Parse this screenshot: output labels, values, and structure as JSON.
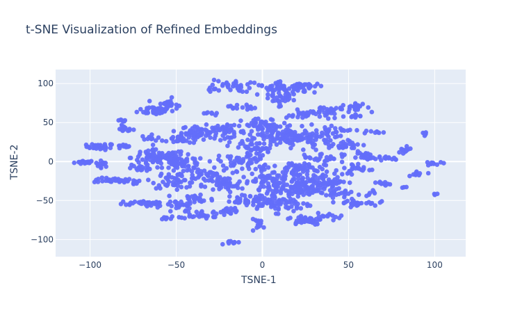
{
  "chart_data": {
    "type": "scatter",
    "title": "t-SNE Visualization of Refined Embeddings",
    "xlabel": "TSNE-1",
    "ylabel": "TSNE-2",
    "xlim": [
      -120,
      118
    ],
    "ylim": [
      -122,
      118
    ],
    "xticks": [
      -100,
      -50,
      0,
      50,
      100
    ],
    "yticks": [
      -100,
      -50,
      0,
      50,
      100
    ],
    "xtick_labels": [
      "−100",
      "−50",
      "0",
      "50",
      "100"
    ],
    "ytick_labels": [
      "−100",
      "−50",
      "0",
      "50",
      "100"
    ],
    "grid": true,
    "marker_color": "#636efa",
    "plot_background": "#e5ecf6",
    "clusters": [
      {
        "cx": -103,
        "cy": -1,
        "sx": 3,
        "sy": 1.2,
        "n": 18
      },
      {
        "cx": -93,
        "cy": -3,
        "sx": 2,
        "sy": 2,
        "n": 12
      },
      {
        "cx": -94,
        "cy": 19,
        "sx": 4,
        "sy": 2,
        "n": 30
      },
      {
        "cx": -81,
        "cy": 19,
        "sx": 2,
        "sy": 1.5,
        "n": 10
      },
      {
        "cx": -80,
        "cy": 42,
        "sx": 2.5,
        "sy": 2,
        "n": 15
      },
      {
        "cx": -82,
        "cy": 52,
        "sx": 1.5,
        "sy": 1,
        "n": 6
      },
      {
        "cx": -86,
        "cy": -24,
        "sx": 6,
        "sy": 1.5,
        "n": 30
      },
      {
        "cx": -76,
        "cy": -27,
        "sx": 3,
        "sy": 1.5,
        "n": 10
      },
      {
        "cx": -62,
        "cy": 66,
        "sx": 5,
        "sy": 3,
        "n": 40
      },
      {
        "cx": -55,
        "cy": 73,
        "sx": 3,
        "sy": 4,
        "n": 25
      },
      {
        "cx": -64,
        "cy": 30,
        "sx": 3,
        "sy": 2,
        "n": 12
      },
      {
        "cx": -48,
        "cy": 29,
        "sx": 5,
        "sy": 3,
        "n": 30
      },
      {
        "cx": -37,
        "cy": 38,
        "sx": 5,
        "sy": 4,
        "n": 45
      },
      {
        "cx": -22,
        "cy": 38,
        "sx": 6,
        "sy": 4,
        "n": 45
      },
      {
        "cx": -60,
        "cy": 5,
        "sx": 8,
        "sy": 5,
        "n": 90
      },
      {
        "cx": -45,
        "cy": -3,
        "sx": 6,
        "sy": 5,
        "n": 50
      },
      {
        "cx": -70,
        "cy": -8,
        "sx": 3,
        "sy": 2,
        "n": 15
      },
      {
        "cx": -50,
        "cy": -24,
        "sx": 7,
        "sy": 5,
        "n": 50
      },
      {
        "cx": -33,
        "cy": -17,
        "sx": 5,
        "sy": 3,
        "n": 30
      },
      {
        "cx": -23,
        "cy": -30,
        "sx": 6,
        "sy": 5,
        "n": 45
      },
      {
        "cx": -38,
        "cy": -48,
        "sx": 5,
        "sy": 4,
        "n": 25
      },
      {
        "cx": -65,
        "cy": -53,
        "sx": 10,
        "sy": 1.5,
        "n": 40
      },
      {
        "cx": -50,
        "cy": -57,
        "sx": 5,
        "sy": 3,
        "n": 20
      },
      {
        "cx": -35,
        "cy": -67,
        "sx": 7,
        "sy": 3,
        "n": 35
      },
      {
        "cx": -56,
        "cy": -73,
        "sx": 2,
        "sy": 1,
        "n": 6
      },
      {
        "cx": -20,
        "cy": -63,
        "sx": 4,
        "sy": 3,
        "n": 15
      },
      {
        "cx": -15,
        "cy": -50,
        "sx": 5,
        "sy": 3,
        "n": 20
      },
      {
        "cx": -18,
        "cy": 97,
        "sx": 6,
        "sy": 4,
        "n": 30
      },
      {
        "cx": -30,
        "cy": 92,
        "sx": 2,
        "sy": 1.5,
        "n": 6
      },
      {
        "cx": -30,
        "cy": 62,
        "sx": 2,
        "sy": 2,
        "n": 8
      },
      {
        "cx": -12,
        "cy": 70,
        "sx": 4,
        "sy": 2,
        "n": 15
      },
      {
        "cx": -5,
        "cy": 18,
        "sx": 7,
        "sy": 5,
        "n": 40
      },
      {
        "cx": 0,
        "cy": 45,
        "sx": 6,
        "sy": 5,
        "n": 35
      },
      {
        "cx": -10,
        "cy": 0,
        "sx": 8,
        "sy": 6,
        "n": 55
      },
      {
        "cx": 5,
        "cy": -25,
        "sx": 8,
        "sy": 7,
        "n": 60
      },
      {
        "cx": 0,
        "cy": -50,
        "sx": 6,
        "sy": 4,
        "n": 30
      },
      {
        "cx": -2,
        "cy": -80,
        "sx": 2.5,
        "sy": 3,
        "n": 15
      },
      {
        "cx": -16,
        "cy": -104,
        "sx": 2.5,
        "sy": 1.2,
        "n": 10
      },
      {
        "cx": 12,
        "cy": 93,
        "sx": 7,
        "sy": 4,
        "n": 60
      },
      {
        "cx": 24,
        "cy": 97,
        "sx": 5,
        "sy": 2,
        "n": 25
      },
      {
        "cx": 10,
        "cy": 80,
        "sx": 3,
        "sy": 4,
        "n": 20
      },
      {
        "cx": 28,
        "cy": 60,
        "sx": 7,
        "sy": 3,
        "n": 35
      },
      {
        "cx": 40,
        "cy": 67,
        "sx": 6,
        "sy": 2,
        "n": 20
      },
      {
        "cx": 20,
        "cy": 30,
        "sx": 10,
        "sy": 6,
        "n": 110
      },
      {
        "cx": 5,
        "cy": 40,
        "sx": 5,
        "sy": 6,
        "n": 35
      },
      {
        "cx": 42,
        "cy": 38,
        "sx": 4,
        "sy": 3,
        "n": 20
      },
      {
        "cx": 48,
        "cy": 22,
        "sx": 7,
        "sy": 3,
        "n": 30
      },
      {
        "cx": 35,
        "cy": 5,
        "sx": 6,
        "sy": 3,
        "n": 25
      },
      {
        "cx": 20,
        "cy": -10,
        "sx": 8,
        "sy": 5,
        "n": 55
      },
      {
        "cx": 22,
        "cy": -35,
        "sx": 10,
        "sy": 6,
        "n": 110
      },
      {
        "cx": 35,
        "cy": -25,
        "sx": 7,
        "sy": 5,
        "n": 40
      },
      {
        "cx": 12,
        "cy": -55,
        "sx": 8,
        "sy": 5,
        "n": 50
      },
      {
        "cx": 25,
        "cy": -75,
        "sx": 5,
        "sy": 3,
        "n": 45
      },
      {
        "cx": 40,
        "cy": -70,
        "sx": 4,
        "sy": 2,
        "n": 15
      },
      {
        "cx": 55,
        "cy": 70,
        "sx": 3,
        "sy": 3,
        "n": 20
      },
      {
        "cx": 55,
        "cy": 57,
        "sx": 2,
        "sy": 2,
        "n": 8
      },
      {
        "cx": 65,
        "cy": 38,
        "sx": 3,
        "sy": 1,
        "n": 10
      },
      {
        "cx": 58,
        "cy": 10,
        "sx": 3,
        "sy": 3,
        "n": 12
      },
      {
        "cx": 55,
        "cy": -10,
        "sx": 5,
        "sy": 4,
        "n": 25
      },
      {
        "cx": 45,
        "cy": -40,
        "sx": 4,
        "sy": 3,
        "n": 15
      },
      {
        "cx": 55,
        "cy": -53,
        "sx": 6,
        "sy": 2,
        "n": 30
      },
      {
        "cx": 62,
        "cy": -40,
        "sx": 2,
        "sy": 2,
        "n": 6
      },
      {
        "cx": 68,
        "cy": 4,
        "sx": 6,
        "sy": 1.5,
        "n": 20
      },
      {
        "cx": 70,
        "cy": -28,
        "sx": 3,
        "sy": 2,
        "n": 10
      },
      {
        "cx": 82,
        "cy": 15,
        "sx": 3,
        "sy": 3,
        "n": 12
      },
      {
        "cx": 90,
        "cy": -15,
        "sx": 3,
        "sy": 1.5,
        "n": 10
      },
      {
        "cx": 93,
        "cy": 35,
        "sx": 1.5,
        "sy": 1.5,
        "n": 6
      },
      {
        "cx": 100,
        "cy": -2,
        "sx": 2,
        "sy": 1.5,
        "n": 10
      },
      {
        "cx": 100,
        "cy": -42,
        "sx": 0.8,
        "sy": 0.8,
        "n": 3
      },
      {
        "cx": 82,
        "cy": -33,
        "sx": 1,
        "sy": 1,
        "n": 3
      }
    ]
  }
}
